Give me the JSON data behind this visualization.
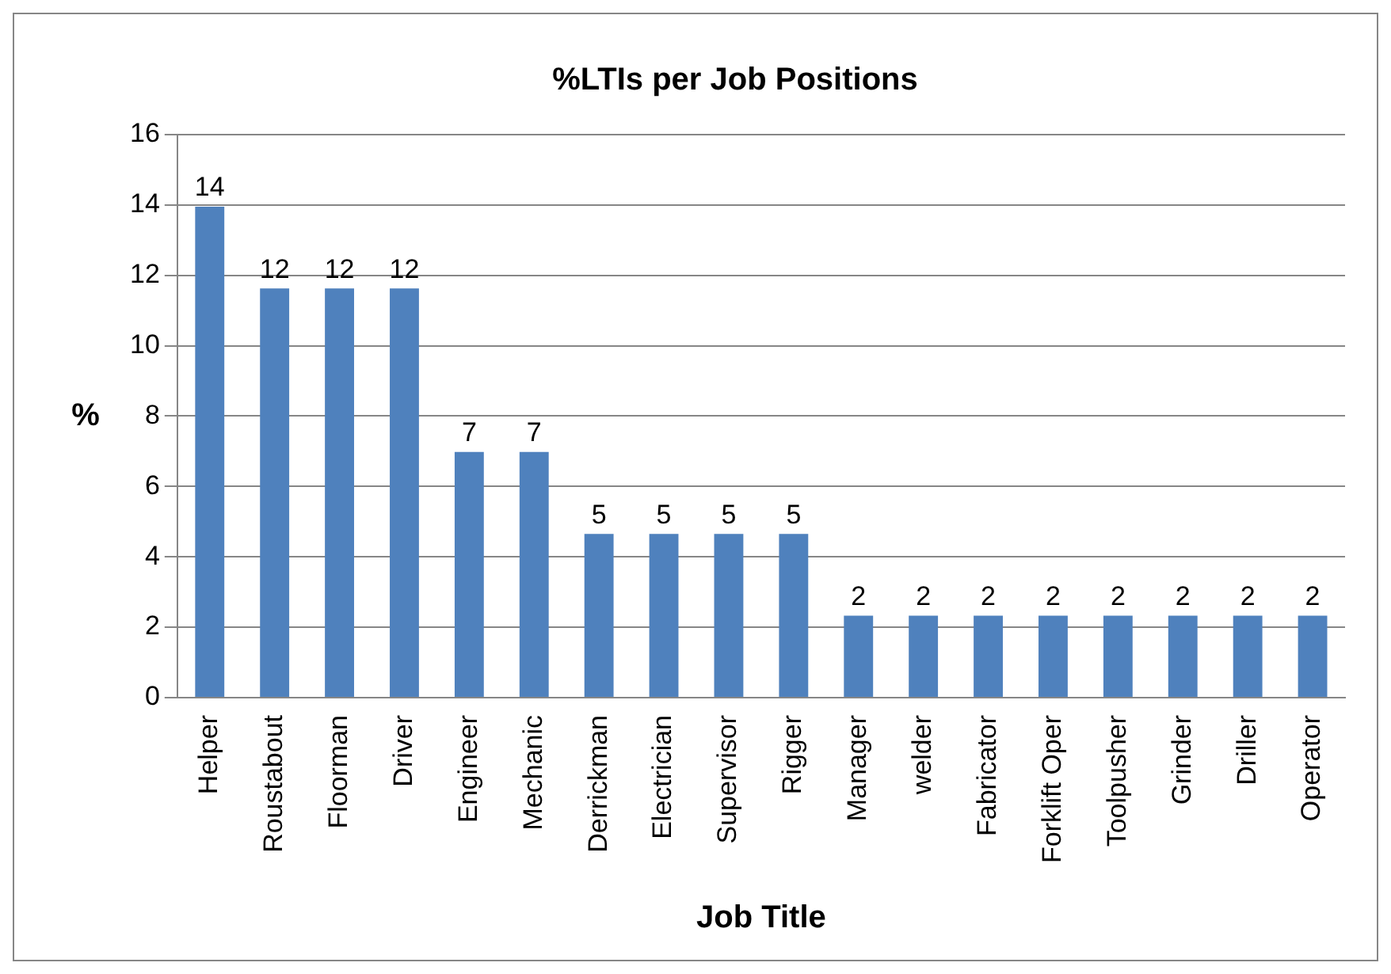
{
  "chart_data": {
    "type": "bar",
    "title": "%LTIs per Job Positions",
    "xlabel": "Job Title",
    "ylabel": "%",
    "categories": [
      "Helper",
      "Roustabout",
      "Floorman",
      "Driver",
      "Engineer",
      "Mechanic",
      "Derrickman",
      "Electrician",
      "Supervisor",
      "Rigger",
      "Manager",
      "welder",
      "Fabricator",
      "Forklift Oper",
      "Toolpusher",
      "Grinder",
      "Driller",
      "Operator"
    ],
    "values": [
      13.95,
      11.63,
      11.63,
      11.63,
      6.98,
      6.98,
      4.65,
      4.65,
      4.65,
      4.65,
      2.33,
      2.33,
      2.33,
      2.33,
      2.33,
      2.33,
      2.33,
      2.33
    ],
    "value_labels": [
      "14",
      "12",
      "12",
      "12",
      "7",
      "7",
      "5",
      "5",
      "5",
      "5",
      "2",
      "2",
      "2",
      "2",
      "2",
      "2",
      "2",
      "2"
    ],
    "color": "#4f81bd",
    "ylim": [
      0,
      16
    ],
    "yticks": [
      0,
      2,
      4,
      6,
      8,
      10,
      12,
      14,
      16
    ],
    "grid": "y",
    "legend": false
  }
}
